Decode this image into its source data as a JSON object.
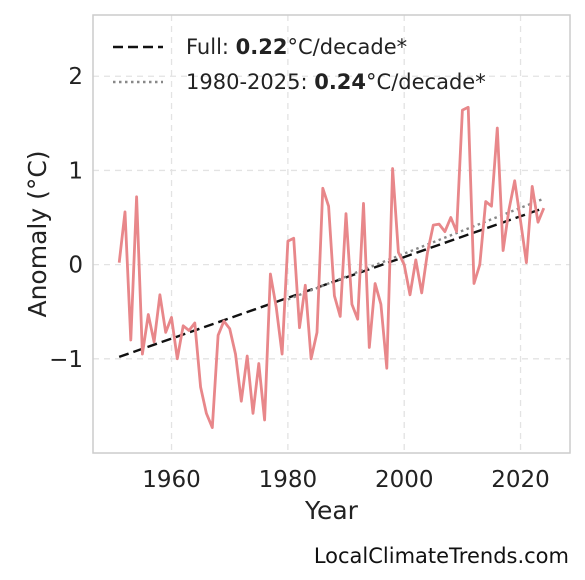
{
  "chart_data": {
    "type": "line",
    "xlabel": "Year",
    "ylabel": "Anomaly (°C)",
    "xlim": [
      1946.5,
      2028.5
    ],
    "ylim": [
      -2.0,
      2.65
    ],
    "x_ticks": [
      1960,
      1980,
      2000,
      2020
    ],
    "y_ticks": [
      -1,
      0,
      1,
      2
    ],
    "y_tick_labels": [
      "−1",
      "0",
      "1",
      "2"
    ],
    "grid": true,
    "legend_position": "top-left",
    "series": [
      {
        "color": "#e8878a",
        "x": [
          1951,
          1952,
          1953,
          1954,
          1955,
          1956,
          1957,
          1958,
          1959,
          1960,
          1961,
          1962,
          1963,
          1964,
          1965,
          1966,
          1967,
          1968,
          1969,
          1970,
          1971,
          1972,
          1973,
          1974,
          1975,
          1976,
          1977,
          1978,
          1979,
          1980,
          1981,
          1982,
          1983,
          1984,
          1985,
          1986,
          1987,
          1988,
          1989,
          1990,
          1991,
          1992,
          1993,
          1994,
          1995,
          1996,
          1997,
          1998,
          1999,
          2000,
          2001,
          2002,
          2003,
          2004,
          2005,
          2006,
          2007,
          2008,
          2009,
          2010,
          2011,
          2012,
          2013,
          2014,
          2015,
          2016,
          2017,
          2018,
          2019,
          2020,
          2021,
          2022,
          2023,
          2024
        ],
        "y": [
          0.02,
          0.56,
          -0.8,
          0.72,
          -0.95,
          -0.53,
          -0.82,
          -0.32,
          -0.72,
          -0.56,
          -1.0,
          -0.65,
          -0.7,
          -0.62,
          -1.3,
          -1.58,
          -1.73,
          -0.75,
          -0.6,
          -0.68,
          -0.95,
          -1.45,
          -0.97,
          -1.58,
          -1.05,
          -1.65,
          -0.1,
          -0.45,
          -0.95,
          0.25,
          0.28,
          -0.67,
          -0.22,
          -1.0,
          -0.72,
          0.81,
          0.62,
          -0.33,
          -0.55,
          0.54,
          -0.42,
          -0.58,
          0.65,
          -0.88,
          -0.2,
          -0.42,
          -1.1,
          1.02,
          0.13,
          0.0,
          -0.32,
          0.05,
          -0.3,
          0.13,
          0.42,
          0.43,
          0.35,
          0.5,
          0.35,
          1.64,
          1.67,
          -0.2,
          0.0,
          0.67,
          0.62,
          1.45,
          0.15,
          0.58,
          0.89,
          0.46,
          0.02,
          0.83,
          0.45,
          0.6
        ]
      }
    ],
    "trends": [
      {
        "label_prefix": "Full: ",
        "label_value": "0.22",
        "label_suffix": "°C/decade*",
        "style": "dashed",
        "color": "#111111",
        "x": [
          1951,
          2024
        ],
        "y": [
          -0.98,
          0.6
        ]
      },
      {
        "label_prefix": "1980-2025: ",
        "label_value": "0.24",
        "label_suffix": "°C/decade*",
        "style": "dotted",
        "color": "#888888",
        "x": [
          1980,
          2024
        ],
        "y": [
          -0.37,
          0.7
        ]
      }
    ]
  },
  "watermark": "LocalClimateTrends.com"
}
